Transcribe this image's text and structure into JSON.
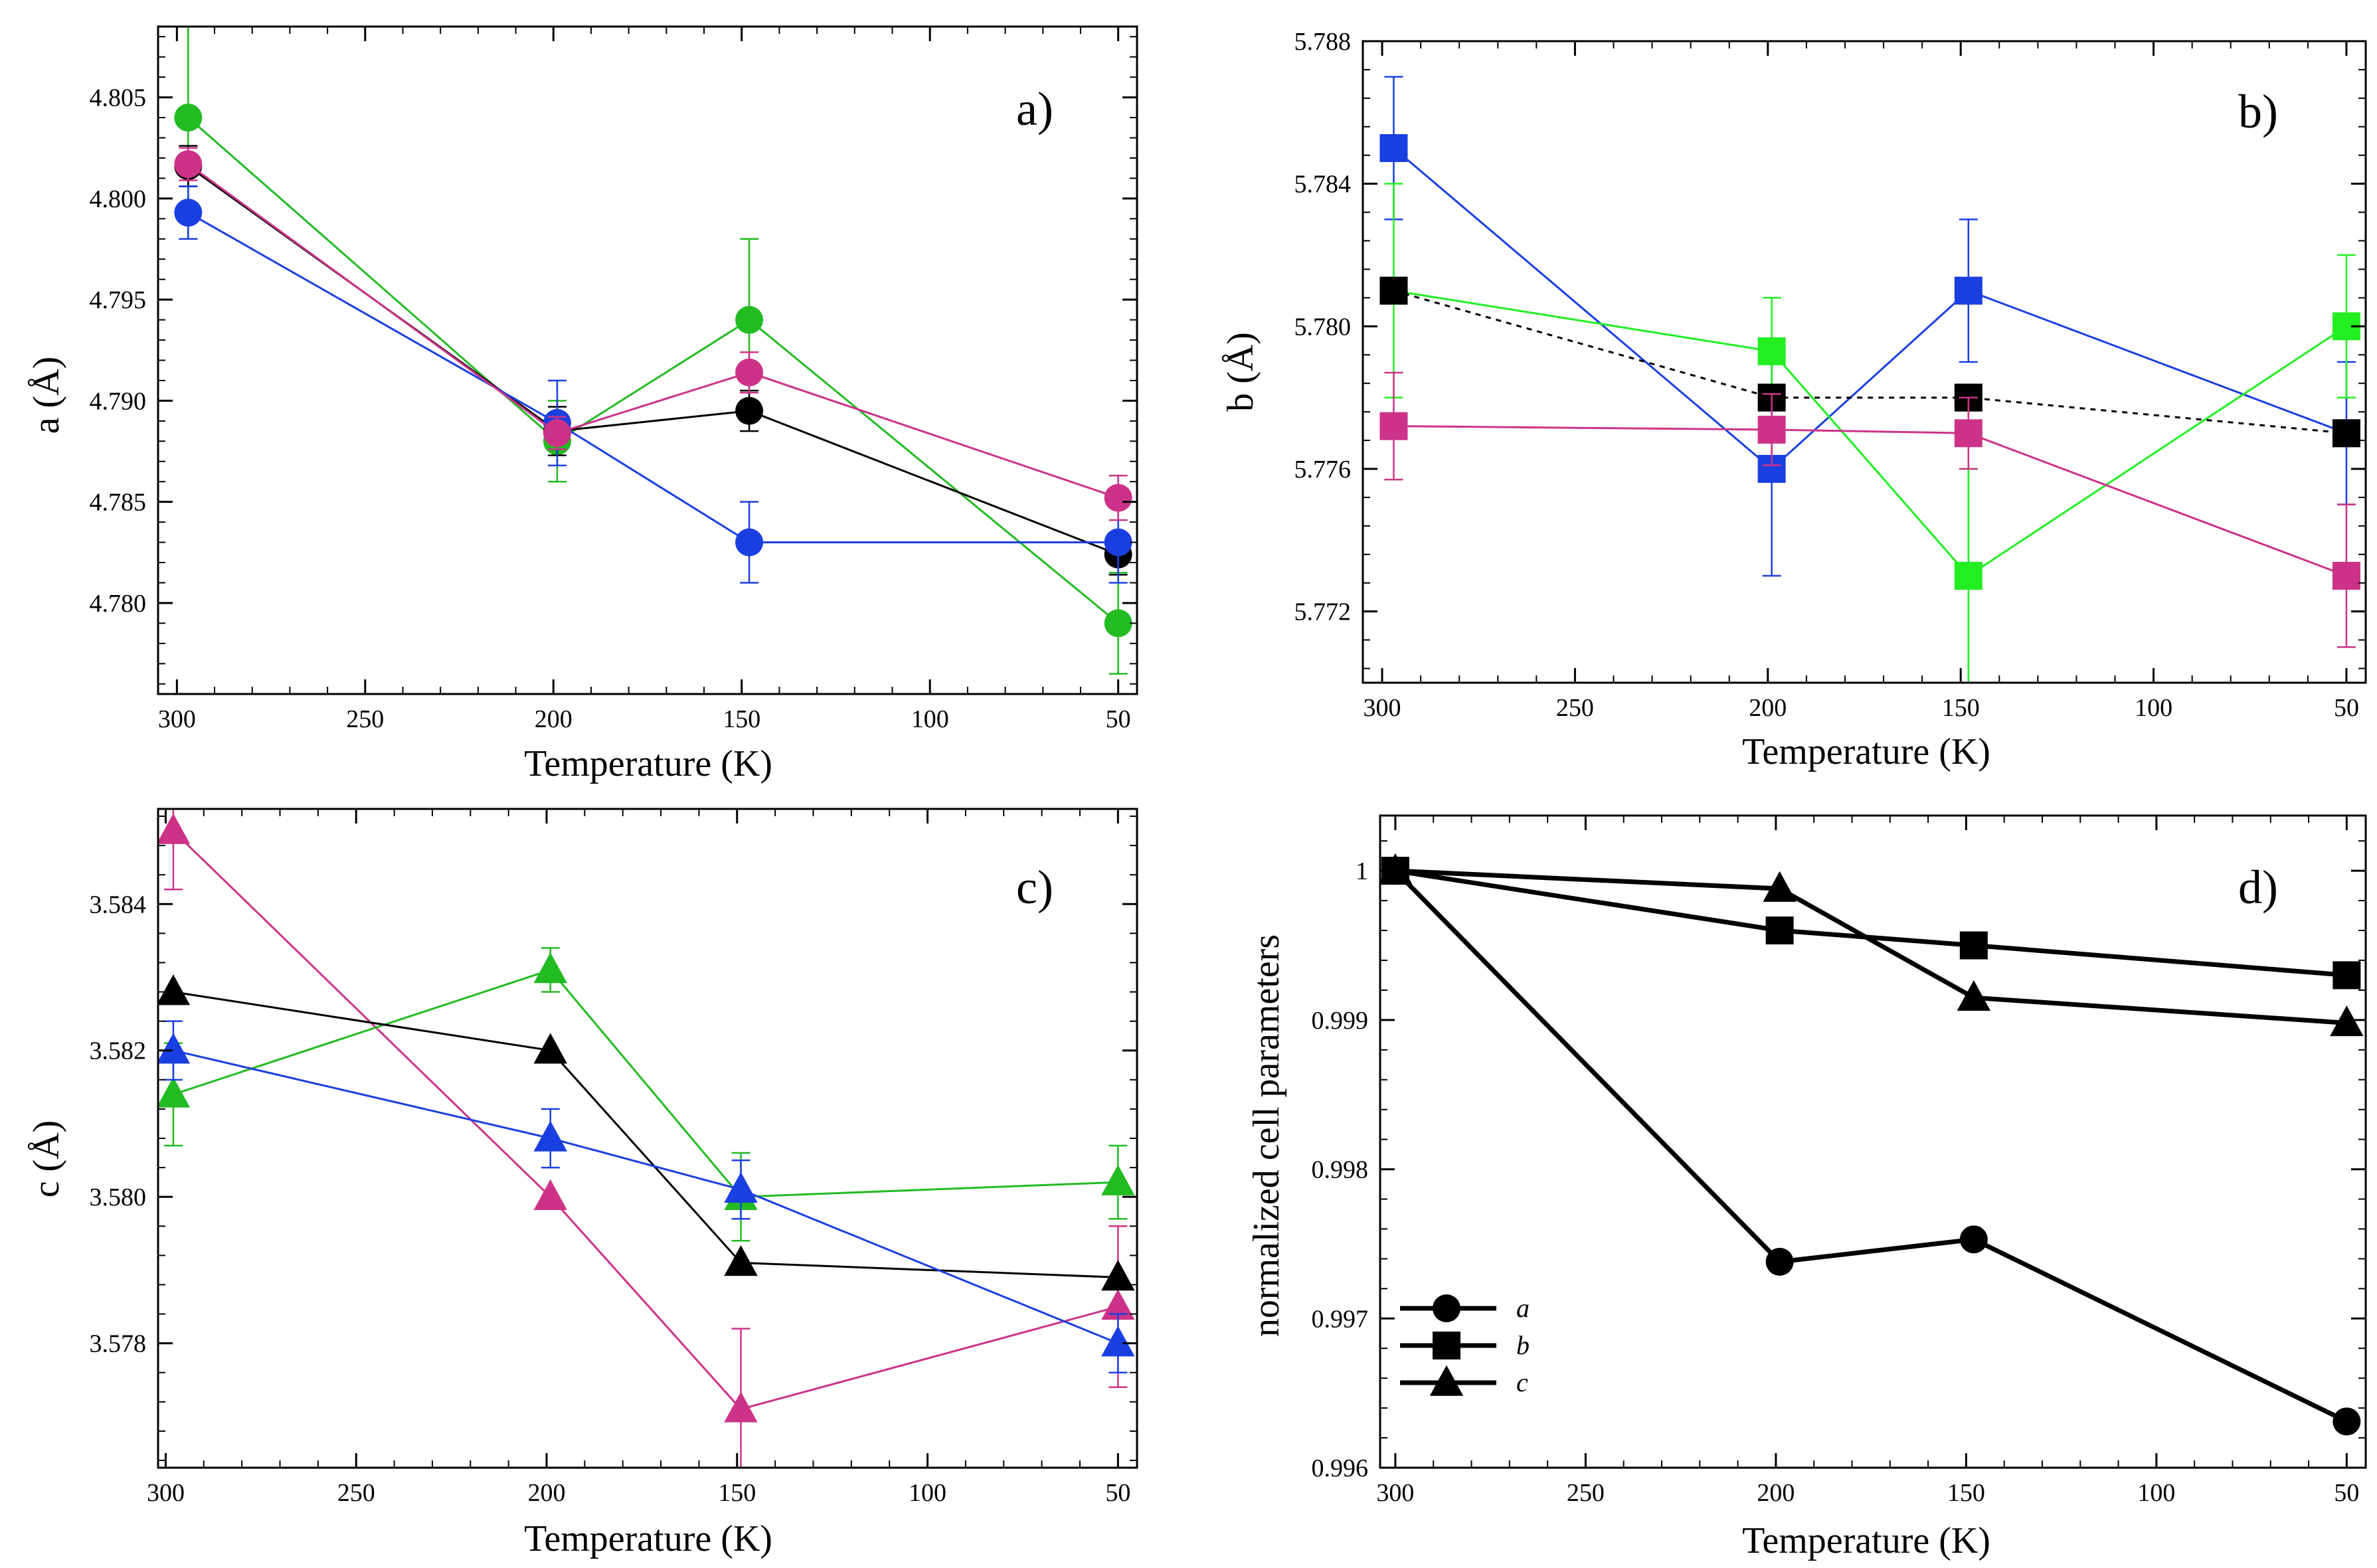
{
  "chart_data": [
    {
      "type": "line",
      "panel_label": "a)",
      "xlabel": "Temperature (K)",
      "ylabel": "a (Å)",
      "xlim": [
        305,
        45
      ],
      "ylim": [
        4.7755,
        4.8085
      ],
      "x_ticks": [
        300,
        250,
        200,
        150,
        100,
        50
      ],
      "y_ticks": [
        4.78,
        4.785,
        4.79,
        4.795,
        4.8,
        4.805
      ],
      "y_tick_labels": [
        "4.780",
        "4.785",
        "4.790",
        "4.795",
        "4.800",
        "4.805"
      ],
      "series": [
        {
          "name": "green",
          "color": "#22bb22",
          "marker": "circle",
          "x": [
            297,
            199,
            148,
            50
          ],
          "values": [
            4.804,
            4.788,
            4.794,
            4.779
          ],
          "errors": [
            0.006,
            0.002,
            0.004,
            0.0025
          ]
        },
        {
          "name": "black",
          "color": "#000000",
          "marker": "circle",
          "x": [
            297,
            199,
            148,
            50
          ],
          "values": [
            4.8016,
            4.7885,
            4.7895,
            4.7824
          ],
          "errors": [
            0.001,
            0.0012,
            0.001,
            0.001
          ]
        },
        {
          "name": "blue",
          "color": "#1a3fe0",
          "marker": "circle",
          "x": [
            297,
            199,
            148,
            50
          ],
          "values": [
            4.7993,
            4.7889,
            4.783,
            4.783
          ],
          "errors": [
            0.0013,
            0.0021,
            0.002,
            0.002
          ]
        },
        {
          "name": "magenta",
          "color": "#cc3388",
          "marker": "circle",
          "x": [
            297,
            199,
            148,
            50
          ],
          "values": [
            4.8017,
            4.7884,
            4.7914,
            4.7852
          ],
          "errors": [
            0.0008,
            0.0008,
            0.001,
            0.0011
          ]
        }
      ]
    },
    {
      "type": "line",
      "panel_label": "b)",
      "xlabel": "Temperature (K)",
      "ylabel": "b (Å)",
      "xlim": [
        305,
        45
      ],
      "ylim": [
        5.77,
        5.788
      ],
      "x_ticks": [
        300,
        250,
        200,
        150,
        100,
        50
      ],
      "y_ticks": [
        5.772,
        5.776,
        5.78,
        5.784,
        5.788
      ],
      "y_tick_labels": [
        "5.772",
        "5.776",
        "5.780",
        "5.784",
        "5.788"
      ],
      "series": [
        {
          "name": "blue",
          "color": "#1a3fe0",
          "marker": "square",
          "x": [
            297,
            199,
            148,
            50
          ],
          "values": [
            5.785,
            5.776,
            5.781,
            5.777
          ],
          "errors": [
            0.002,
            0.003,
            0.002,
            0.002
          ]
        },
        {
          "name": "green",
          "color": "#22ee22",
          "marker": "square",
          "x": [
            297,
            199,
            148,
            50
          ],
          "values": [
            5.781,
            5.7793,
            5.773,
            5.78
          ],
          "errors": [
            0.003,
            0.0015,
            0.003,
            0.002
          ]
        },
        {
          "name": "black",
          "color": "#000000",
          "marker": "square",
          "dashed": true,
          "x": [
            297,
            199,
            148,
            50
          ],
          "values": [
            5.781,
            5.778,
            5.778,
            5.777
          ],
          "errors": [
            0,
            0,
            0,
            0
          ]
        },
        {
          "name": "magenta",
          "color": "#cc3388",
          "marker": "square",
          "x": [
            297,
            199,
            148,
            50
          ],
          "values": [
            5.7772,
            5.7771,
            5.777,
            5.773
          ],
          "errors": [
            0.0015,
            0.001,
            0.001,
            0.002
          ]
        }
      ]
    },
    {
      "type": "line",
      "panel_label": "c)",
      "xlabel": "Temperature (K)",
      "ylabel": "c (Å)",
      "xlim": [
        302,
        45
      ],
      "ylim": [
        3.5763,
        3.5853
      ],
      "x_ticks": [
        300,
        250,
        200,
        150,
        100,
        50
      ],
      "y_ticks": [
        3.578,
        3.58,
        3.582,
        3.584
      ],
      "y_tick_labels": [
        "3.578",
        "3.580",
        "3.582",
        "3.584"
      ],
      "series": [
        {
          "name": "magenta",
          "color": "#cc3388",
          "marker": "triangle",
          "x": [
            298,
            199,
            149,
            50
          ],
          "values": [
            3.585,
            3.58,
            3.5771,
            3.5785
          ],
          "errors": [
            0.0008,
            0,
            0.0011,
            0.0011
          ]
        },
        {
          "name": "green",
          "color": "#22bb22",
          "marker": "triangle",
          "x": [
            298,
            199,
            149,
            50
          ],
          "values": [
            3.5814,
            3.5831,
            3.58,
            3.5802
          ],
          "errors": [
            0.0007,
            0.0003,
            0.0006,
            0.0005
          ]
        },
        {
          "name": "black",
          "color": "#000000",
          "marker": "triangle",
          "x": [
            298,
            199,
            149,
            50
          ],
          "values": [
            3.5828,
            3.582,
            3.5791,
            3.5789
          ],
          "errors": [
            0,
            0,
            0,
            0
          ]
        },
        {
          "name": "blue",
          "color": "#1a3fe0",
          "marker": "triangle",
          "x": [
            298,
            199,
            149,
            50
          ],
          "values": [
            3.582,
            3.5808,
            3.5801,
            3.578
          ],
          "errors": [
            0.0004,
            0.0004,
            0.0004,
            0.0004
          ]
        }
      ]
    },
    {
      "type": "line",
      "panel_label": "d)",
      "xlabel": "Temperature (K)",
      "ylabel": "normalized cell parameters",
      "xlim": [
        304,
        45
      ],
      "ylim": [
        0.996,
        1.00037
      ],
      "x_ticks": [
        300,
        250,
        200,
        150,
        100,
        50
      ],
      "y_ticks": [
        0.996,
        0.997,
        0.998,
        0.999,
        1.0
      ],
      "y_tick_labels": [
        "0.996",
        "0.997",
        "0.998",
        "0.999",
        "1"
      ],
      "legend": {
        "position": "bottom-left",
        "entries": [
          "a",
          "b",
          "c"
        ]
      },
      "series": [
        {
          "name": "a",
          "color": "#000000",
          "marker": "circle",
          "x": [
            300,
            199,
            148,
            50
          ],
          "values": [
            1.0,
            0.99738,
            0.99753,
            0.99631
          ]
        },
        {
          "name": "b",
          "color": "#000000",
          "marker": "square",
          "x": [
            300,
            199,
            148,
            50
          ],
          "values": [
            1.0,
            0.9996,
            0.9995,
            0.9993
          ]
        },
        {
          "name": "c",
          "color": "#000000",
          "marker": "triangle",
          "x": [
            300,
            199,
            148,
            50
          ],
          "values": [
            1.0,
            0.99988,
            0.99915,
            0.99898
          ]
        }
      ]
    }
  ]
}
